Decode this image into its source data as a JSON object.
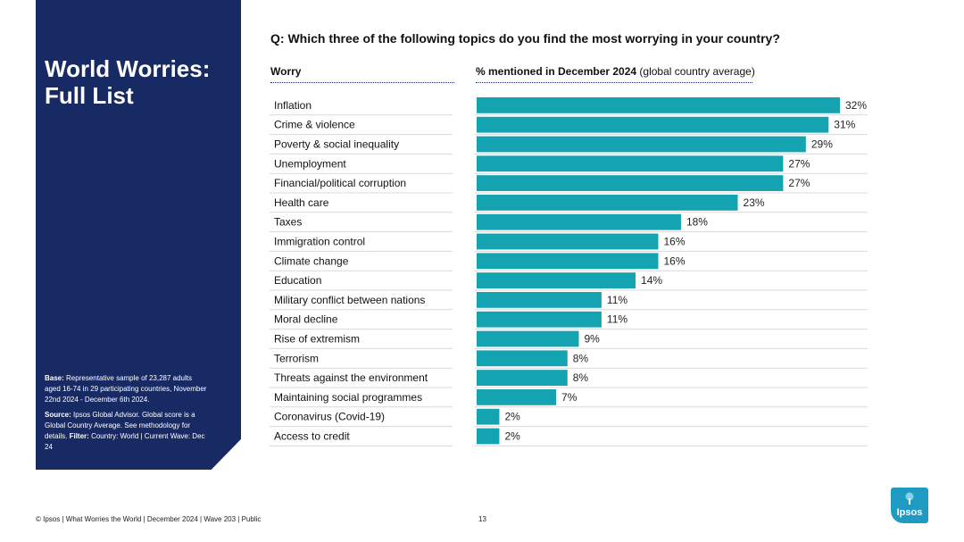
{
  "sidebar": {
    "title": "World Worries: Full List",
    "base_label": "Base:",
    "base_text": "Representative sample of 23,287 adults aged 16-74 in 29 participating countries, November 22nd 2024 - December 6th 2024.",
    "source_label": "Source:",
    "source_text": "Ipsos Global Advisor. Global score is a Global Country Average. See methodology for details.",
    "filter_label": "Filter:",
    "filter_text": "Country: World | Current Wave: Dec 24"
  },
  "question": "Q: Which three of the following topics do you find the most worrying in your country?",
  "headers": {
    "worry": "Worry",
    "pct_bold": "% mentioned in December 2024",
    "pct_rest": " (global country average)"
  },
  "chart_data": {
    "type": "bar",
    "orientation": "horizontal",
    "categories": [
      "Inflation",
      "Crime & violence",
      "Poverty & social inequality",
      "Unemployment",
      "Financial/political corruption",
      "Health care",
      "Taxes",
      "Immigration control",
      "Climate change",
      "Education",
      "Military conflict between nations",
      "Moral decline",
      "Rise of extremism",
      "Terrorism",
      "Threats against the environment",
      "Maintaining social programmes",
      "Coronavirus (Covid-19)",
      "Access to credit"
    ],
    "values": [
      32,
      31,
      29,
      27,
      27,
      23,
      18,
      16,
      16,
      14,
      11,
      11,
      9,
      8,
      8,
      7,
      2,
      2
    ],
    "value_suffix": "%",
    "bar_color": "#14a3b1",
    "xlim": [
      0,
      32
    ],
    "grid": false
  },
  "footer": "© Ipsos | What Worries the World | December 2024 | Wave 203 | Public",
  "page_number": "13",
  "logo_text": "Ipsos",
  "colors": {
    "sidebar": "#182a63",
    "logo": "#1f9bc3"
  }
}
